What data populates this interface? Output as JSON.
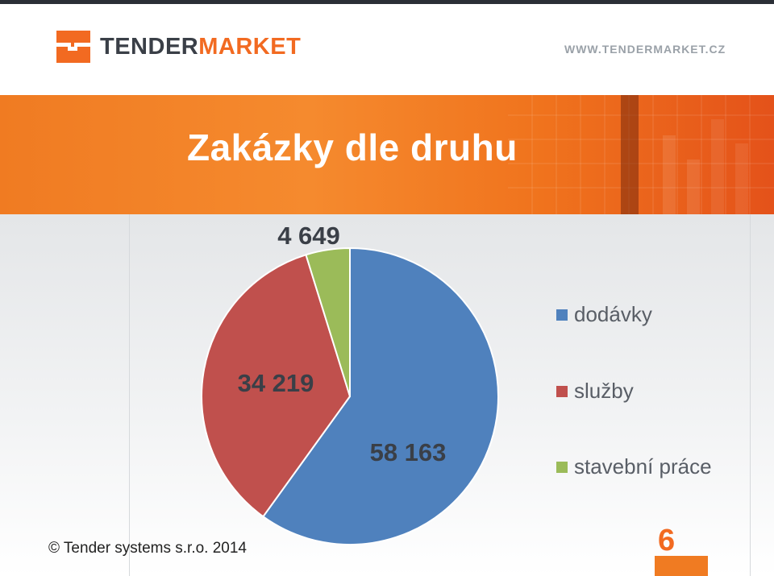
{
  "brand": {
    "logo_part1": "TENDER",
    "logo_part2": "MARKET",
    "website": "WWW.TENDERMARKET.CZ",
    "accent_color": "#f26a21",
    "logo_icon": "tendermarket-logo-icon"
  },
  "slide": {
    "title": "Zakázky dle druhu",
    "footer": "© Tender systems s.r.o. 2014",
    "page_number": "6"
  },
  "chart_data": {
    "type": "pie",
    "slices": [
      {
        "label": "dodávky",
        "value": 58163,
        "value_label": "58 163",
        "color": "#4f81bd"
      },
      {
        "label": "služby",
        "value": 34219,
        "value_label": "34 219",
        "color": "#c0504d"
      },
      {
        "label": "stavební práce",
        "value": 4649,
        "value_label": "4 649",
        "color": "#9bbb59"
      }
    ],
    "start_angle_deg": 0,
    "direction": "clockwise",
    "legend_position": "right",
    "title": ""
  }
}
